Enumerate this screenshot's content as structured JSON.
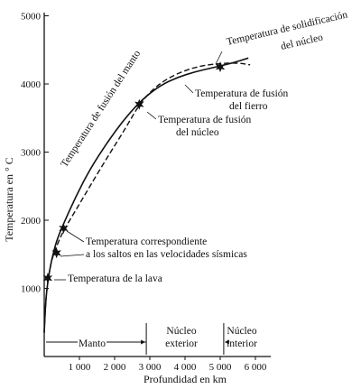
{
  "chart_data": {
    "type": "line",
    "xlabel": "Profundidad en km",
    "ylabel": "Temperatura en ° C",
    "xlim": [
      0,
      6300
    ],
    "ylim": [
      0,
      5200
    ],
    "x_ticks": [
      {
        "value": 1000,
        "label": "1 000"
      },
      {
        "value": 2000,
        "label": "2 000"
      },
      {
        "value": 3000,
        "label": "3 000"
      },
      {
        "value": 4000,
        "label": "4 000"
      },
      {
        "value": 5000,
        "label": "5 000"
      },
      {
        "value": 6000,
        "label": "6 000"
      }
    ],
    "y_ticks": [
      {
        "value": 1000,
        "label": "1000"
      },
      {
        "value": 2000,
        "label": "2000"
      },
      {
        "value": 3000,
        "label": "3000"
      },
      {
        "value": 4000,
        "label": "4000"
      },
      {
        "value": 5000,
        "label": "5000"
      }
    ],
    "series": [
      {
        "style": "solid",
        "x": [
          0,
          40,
          100,
          200,
          350,
          550,
          900,
          1300,
          1800,
          2300,
          2800,
          3300,
          3800,
          4300,
          4800,
          5300,
          5800
        ],
        "y": [
          350,
          800,
          1100,
          1400,
          1700,
          1950,
          2350,
          2750,
          3150,
          3500,
          3780,
          3980,
          4100,
          4180,
          4240,
          4300,
          4380
        ]
      },
      {
        "style": "dashed",
        "x": [
          0,
          40,
          100,
          200,
          350,
          550,
          900,
          1300,
          1800,
          2300,
          2700,
          3100,
          3500,
          4000,
          4500,
          5000,
          5500,
          5850
        ],
        "y": [
          350,
          800,
          1100,
          1400,
          1620,
          1850,
          2150,
          2500,
          2930,
          3340,
          3700,
          3930,
          4080,
          4200,
          4270,
          4300,
          4310,
          4280
        ]
      }
    ],
    "markers": [
      {
        "x": 100,
        "y": 1150
      },
      {
        "x": 350,
        "y": 1520
      },
      {
        "x": 550,
        "y": 1880
      },
      {
        "x": 2700,
        "y": 3700
      },
      {
        "x": 5000,
        "y": 4250
      }
    ],
    "annotations": [
      {
        "text": "Temperatura de fusión del manto"
      },
      {
        "line1": "Temperatura de solidificación",
        "line2": "del núcleo"
      },
      {
        "line1": "Temperatura de fusión",
        "line2": "del fierro"
      },
      {
        "line1": "Temperatura de fusión",
        "line2": "del núcleo"
      },
      {
        "line1": "Temperatura correspondiente",
        "line2": "a los saltos en las velocidades sísmicas"
      },
      {
        "text": "Temperatura de la lava"
      }
    ],
    "regions": [
      {
        "label": "Manto",
        "from": 0,
        "to": 2900
      },
      {
        "line1": "Núcleo",
        "line2": "exterior",
        "from": 2900,
        "to": 5100
      },
      {
        "line1": "Núcleo",
        "line2": "interior",
        "from": 5100,
        "to": 6300
      }
    ]
  }
}
